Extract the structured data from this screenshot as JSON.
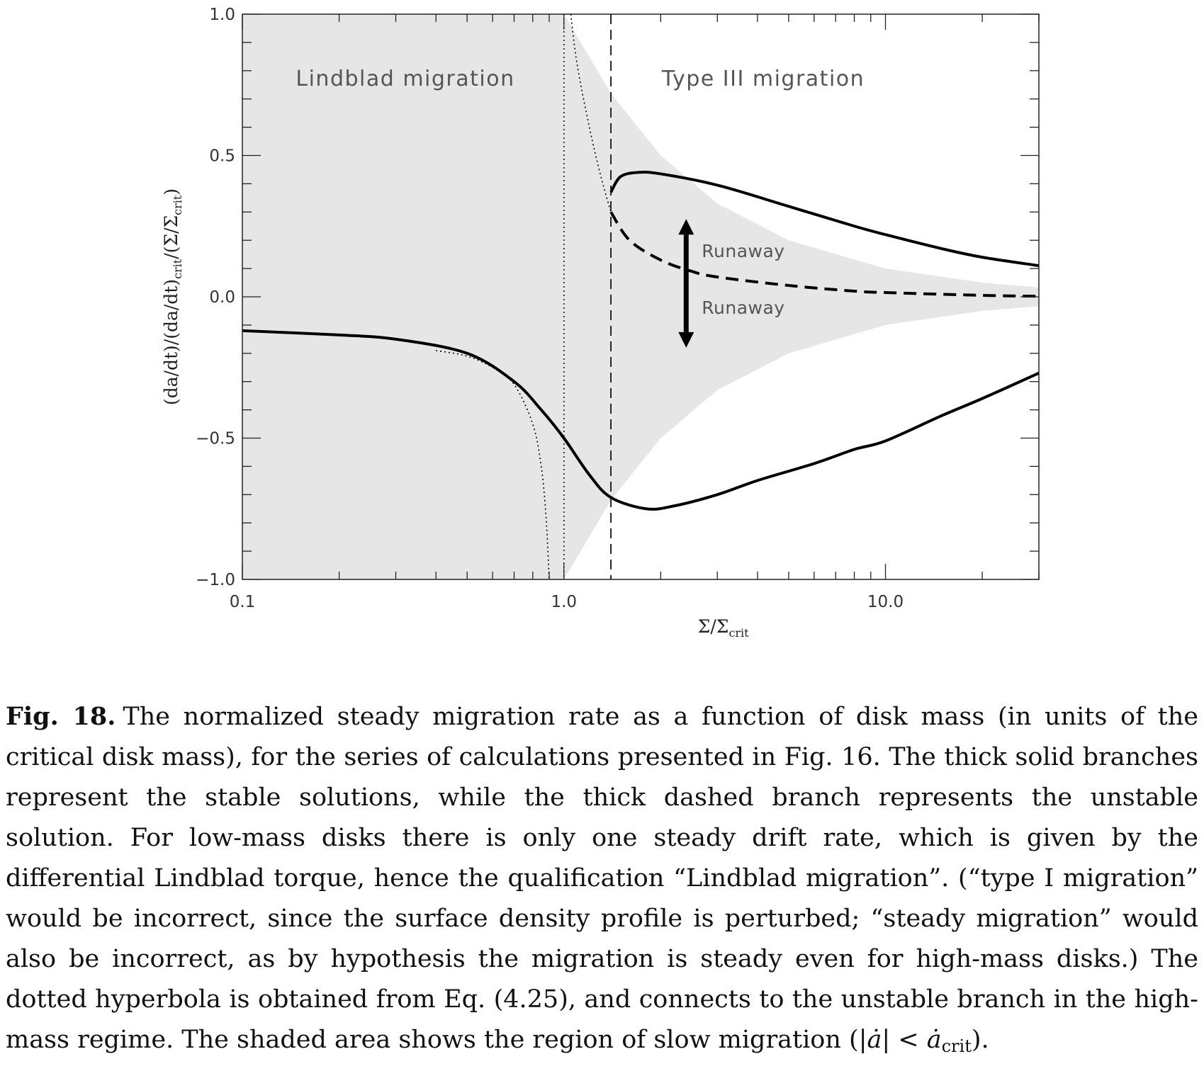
{
  "chart_data": {
    "type": "line",
    "xscale": "log",
    "xlim": [
      0.1,
      30
    ],
    "ylim": [
      -1.0,
      1.0
    ],
    "x_ticks": [
      "0.1",
      "1.0",
      "10.0"
    ],
    "y_ticks": [
      "1.0",
      "0.5",
      "0.0",
      "−0.5",
      "−1.0"
    ],
    "xlabel": {
      "main": "Σ/Σ",
      "sub": "crit"
    },
    "ylabel": {
      "part1": "(da/dt)/(da/dt)",
      "sub1": "crit",
      "part2": "/(Σ/Σ",
      "sub2": "crit",
      "part3": ")"
    },
    "region_labels": [
      "Lindblad migration",
      "Type III migration"
    ],
    "annotations": [
      "Runaway",
      "Runaway"
    ],
    "vertical_lines": [
      {
        "x": 1.0,
        "style": "dotted"
      },
      {
        "x": 1.4,
        "style": "dashed"
      }
    ],
    "shaded_region": {
      "description_points_upper": [
        [
          1.0,
          1.0
        ],
        [
          1.4,
          0.72
        ],
        [
          2,
          0.5
        ],
        [
          3,
          0.33
        ],
        [
          5,
          0.2
        ],
        [
          10,
          0.1
        ],
        [
          20,
          0.05
        ],
        [
          30,
          0.033
        ]
      ],
      "description_points_lower": [
        [
          1.0,
          -1.0
        ],
        [
          1.4,
          -0.72
        ],
        [
          2,
          -0.5
        ],
        [
          3,
          -0.33
        ],
        [
          5,
          -0.2
        ],
        [
          10,
          -0.1
        ],
        [
          20,
          -0.05
        ],
        [
          30,
          -0.033
        ]
      ]
    },
    "series": [
      {
        "style": "thick-solid",
        "points": [
          [
            0.1,
            -0.12
          ],
          [
            0.2,
            -0.135
          ],
          [
            0.3,
            -0.15
          ],
          [
            0.5,
            -0.2
          ],
          [
            0.7,
            -0.3
          ],
          [
            0.85,
            -0.4
          ],
          [
            1.0,
            -0.5
          ],
          [
            1.2,
            -0.63
          ],
          [
            1.4,
            -0.71
          ],
          [
            1.8,
            -0.75
          ],
          [
            2.2,
            -0.74
          ],
          [
            3,
            -0.7
          ],
          [
            4,
            -0.65
          ],
          [
            6,
            -0.59
          ],
          [
            8,
            -0.54
          ],
          [
            10,
            -0.51
          ],
          [
            15,
            -0.42
          ],
          [
            20,
            -0.36
          ],
          [
            30,
            -0.27
          ]
        ]
      },
      {
        "style": "thick-solid",
        "points": [
          [
            1.4,
            0.37
          ],
          [
            1.5,
            0.425
          ],
          [
            1.7,
            0.44
          ],
          [
            2,
            0.435
          ],
          [
            3,
            0.395
          ],
          [
            5,
            0.32
          ],
          [
            8,
            0.25
          ],
          [
            10,
            0.22
          ],
          [
            15,
            0.17
          ],
          [
            20,
            0.14
          ],
          [
            30,
            0.11
          ]
        ]
      },
      {
        "style": "thick-dashed",
        "points": [
          [
            1.4,
            0.3
          ],
          [
            1.6,
            0.2
          ],
          [
            2,
            0.13
          ],
          [
            2.5,
            0.09
          ],
          [
            3,
            0.07
          ],
          [
            5,
            0.04
          ],
          [
            8,
            0.02
          ],
          [
            10,
            0.015
          ],
          [
            20,
            0.005
          ],
          [
            30,
            0.002
          ]
        ]
      },
      {
        "style": "dotted",
        "points": [
          [
            0.4,
            -0.19
          ],
          [
            0.5,
            -0.21
          ],
          [
            0.6,
            -0.25
          ],
          [
            0.7,
            -0.31
          ],
          [
            0.8,
            -0.45
          ],
          [
            0.85,
            -0.6
          ],
          [
            0.88,
            -0.78
          ],
          [
            0.9,
            -1.0
          ]
        ]
      },
      {
        "style": "dotted",
        "points": [
          [
            1.05,
            1.0
          ],
          [
            1.1,
            0.82
          ],
          [
            1.2,
            0.6
          ],
          [
            1.3,
            0.43
          ],
          [
            1.4,
            0.3
          ]
        ]
      }
    ]
  },
  "caption": {
    "label": "Fig. 18.",
    "text": "The normalized steady migration rate as a function of disk mass (in units of the critical disk mass), for the series of calculations presented in Fig. 16. The thick solid branches represent the stable solutions, while the thick dashed branch represents the unstable solution. For low-mass disks there is only one steady drift rate, which is given by the differential Lindblad torque, hence the qualification “Lindblad migration”. (“type I migration” would be incorrect, since the surface density profile is perturbed; “steady migration” would also be incorrect, as by hypothesis the migration is steady even for high-mass disks.)  The dotted hyperbola is obtained from Eq. (4.25), and connects to the unstable branch in the high-mass regime. The shaded area shows the region of slow migration (",
    "math_a": "|ȧ| < ȧ",
    "math_sub": "crit",
    "end": ")."
  }
}
